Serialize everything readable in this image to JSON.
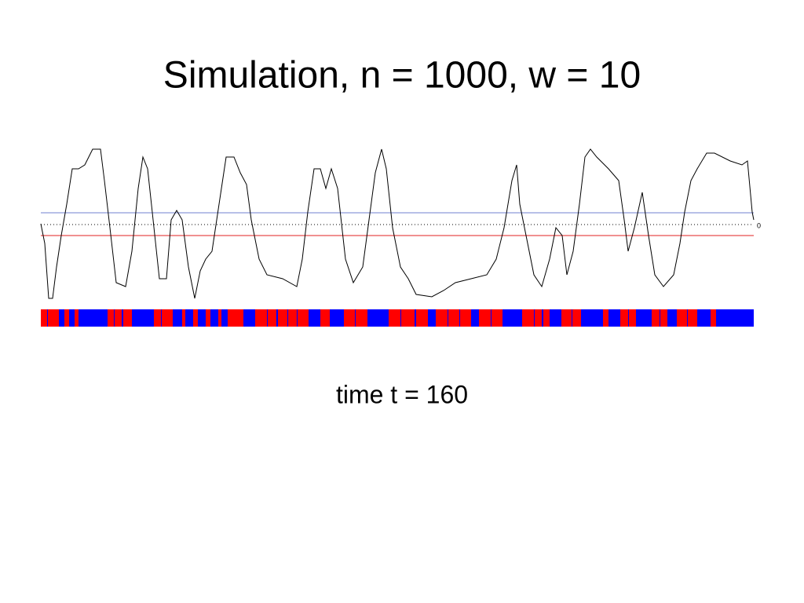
{
  "title": "Simulation, n = 1000, w = 10",
  "axis_label": "0",
  "caption": "time t = 160"
}
